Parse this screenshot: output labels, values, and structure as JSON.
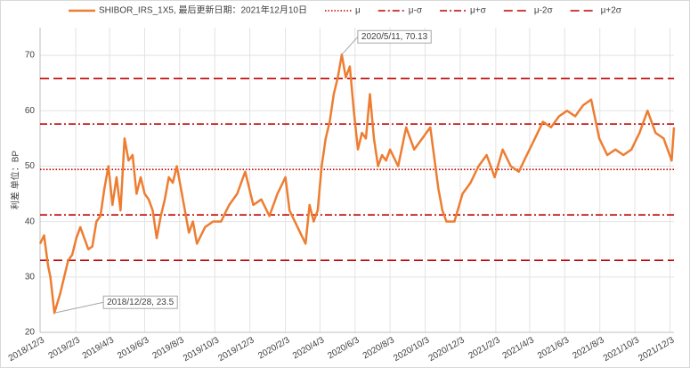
{
  "chart_data": {
    "type": "line",
    "y_label": "利差 单位：BP",
    "xlim": [
      "2018/12/3",
      "2021/12/10"
    ],
    "xticks": [
      "2018/12/3",
      "2019/2/3",
      "2019/4/3",
      "2019/6/3",
      "2019/8/3",
      "2019/10/3",
      "2019/12/3",
      "2020/2/3",
      "2020/4/3",
      "2020/6/3",
      "2020/8/3",
      "2020/10/3",
      "2020/12/3",
      "2021/2/3",
      "2021/4/3",
      "2021/6/3",
      "2021/8/3",
      "2021/10/3",
      "2021/12/3"
    ],
    "ylim": [
      20,
      75
    ],
    "yticks": [
      20,
      30,
      40,
      50,
      60,
      70
    ],
    "grid": true,
    "legend": "top",
    "x": [
      "2018/12/3",
      "2018/12/10",
      "2018/12/17",
      "2018/12/21",
      "2018/12/28",
      "2019/1/7",
      "2019/1/14",
      "2019/1/21",
      "2019/1/28",
      "2019/2/4",
      "2019/2/11",
      "2019/2/18",
      "2019/2/25",
      "2019/3/4",
      "2019/3/11",
      "2019/3/18",
      "2019/3/25",
      "2019/4/1",
      "2019/4/8",
      "2019/4/15",
      "2019/4/22",
      "2019/4/29",
      "2019/5/6",
      "2019/5/13",
      "2019/5/20",
      "2019/5/27",
      "2019/6/3",
      "2019/6/10",
      "2019/6/17",
      "2019/6/24",
      "2019/7/1",
      "2019/7/8",
      "2019/7/15",
      "2019/7/22",
      "2019/7/29",
      "2019/8/5",
      "2019/8/12",
      "2019/8/19",
      "2019/8/26",
      "2019/9/2",
      "2019/9/16",
      "2019/9/30",
      "2019/10/14",
      "2019/10/28",
      "2019/11/11",
      "2019/11/25",
      "2019/12/9",
      "2019/12/23",
      "2020/1/6",
      "2020/1/20",
      "2020/2/3",
      "2020/2/10",
      "2020/2/24",
      "2020/3/9",
      "2020/3/16",
      "2020/3/23",
      "2020/3/30",
      "2020/4/6",
      "2020/4/13",
      "2020/4/20",
      "2020/4/27",
      "2020/5/4",
      "2020/5/11",
      "2020/5/18",
      "2020/5/25",
      "2020/6/1",
      "2020/6/8",
      "2020/6/15",
      "2020/6/22",
      "2020/6/29",
      "2020/7/6",
      "2020/7/13",
      "2020/7/20",
      "2020/7/27",
      "2020/8/3",
      "2020/8/17",
      "2020/8/31",
      "2020/9/14",
      "2020/9/28",
      "2020/10/12",
      "2020/10/26",
      "2020/11/2",
      "2020/11/9",
      "2020/11/23",
      "2020/12/7",
      "2020/12/21",
      "2021/1/4",
      "2021/1/18",
      "2021/2/1",
      "2021/2/15",
      "2021/3/1",
      "2021/3/15",
      "2021/3/29",
      "2021/4/12",
      "2021/4/26",
      "2021/5/10",
      "2021/5/24",
      "2021/6/7",
      "2021/6/21",
      "2021/7/5",
      "2021/7/19",
      "2021/8/2",
      "2021/8/16",
      "2021/8/30",
      "2021/9/13",
      "2021/9/27",
      "2021/10/11",
      "2021/10/25",
      "2021/11/8",
      "2021/11/22",
      "2021/12/6",
      "2021/12/10"
    ],
    "series": [
      {
        "name": "SHIBOR_IRS_1X5, 最后更新日期：2021年12月10日",
        "color": "#ed7d31",
        "values": [
          36,
          37.5,
          32,
          30,
          23.5,
          27,
          30,
          33,
          34,
          37,
          39,
          37,
          35,
          35.5,
          40,
          41,
          46,
          50,
          43,
          48,
          42,
          55,
          51,
          52,
          45,
          48,
          45,
          44,
          42,
          37,
          41,
          44,
          48,
          47,
          50,
          46,
          42,
          38,
          40,
          36,
          39,
          40,
          40,
          43,
          45,
          49,
          43,
          44,
          41,
          45,
          48,
          42,
          39,
          36,
          43,
          40,
          42,
          50,
          55,
          58,
          63,
          66,
          70.13,
          66,
          68,
          60,
          53,
          56,
          55,
          63,
          55,
          50,
          52,
          51,
          53,
          50,
          57,
          53,
          55,
          57,
          46,
          42,
          40,
          40,
          45,
          47,
          50,
          52,
          48,
          53,
          50,
          49,
          52,
          55,
          58,
          57,
          59,
          60,
          59,
          61,
          62,
          55,
          52,
          53,
          52,
          53,
          56,
          60,
          56,
          55,
          51,
          57
        ]
      }
    ],
    "hlines": [
      {
        "name": "μ",
        "value": 49.4,
        "color": "#c00000",
        "dash": "1.5 2"
      },
      {
        "name": "μ-σ",
        "value": 41.2,
        "color": "#c00000",
        "dash": "8 3 2 3"
      },
      {
        "name": "μ+σ",
        "value": 57.6,
        "color": "#c00000",
        "dash": "8 3 2 3"
      },
      {
        "name": "μ-2σ",
        "value": 33,
        "color": "#c00000",
        "dash": "10 5"
      },
      {
        "name": "μ+2σ",
        "value": 65.8,
        "color": "#c00000",
        "dash": "10 5"
      }
    ],
    "annotations": [
      {
        "label": "2020/5/11, 70.13",
        "x": "2020/5/11",
        "y": 70.13,
        "color": "#c00000"
      },
      {
        "label": "2018/12/28, 23.5",
        "x": "2018/12/28",
        "y": 23.5,
        "color": "#548235"
      }
    ]
  }
}
